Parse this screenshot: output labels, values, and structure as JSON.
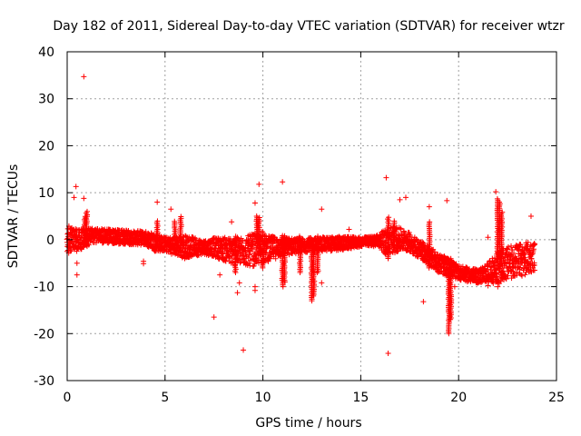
{
  "chart_data": {
    "type": "scatter",
    "title": "Day 182 of 2011, Sidereal Day-to-day VTEC variation (SDTVAR) for receiver wtzr",
    "xlabel": "GPS time / hours",
    "ylabel": "SDTVAR / TECUs",
    "xlim": [
      0,
      25
    ],
    "ylim": [
      -30,
      40
    ],
    "xticks": [
      0,
      5,
      10,
      15,
      20,
      25
    ],
    "yticks": [
      -30,
      -20,
      -10,
      0,
      10,
      20,
      30,
      40
    ],
    "grid": true,
    "marker": "+",
    "marker_color": "#ff0000",
    "series": [
      {
        "name": "SDTVAR",
        "band": {
          "x": [
            0,
            0.5,
            1,
            1.5,
            2,
            3,
            4,
            4.5,
            5,
            5.5,
            6,
            6.5,
            7,
            7.5,
            8,
            8.5,
            9,
            9.5,
            10,
            10.5,
            11,
            12,
            13,
            14,
            15,
            15.5,
            16,
            16.3,
            16.6,
            17,
            17.5,
            18,
            18.5,
            19,
            19.5,
            20,
            20.5,
            21,
            21.5,
            22,
            22.5,
            23,
            23.5,
            23.9
          ],
          "center": [
            0,
            0,
            0.5,
            0.8,
            0.8,
            0.5,
            0.3,
            -0.5,
            -1,
            -1.3,
            -1.5,
            -1.5,
            -1.6,
            -1.6,
            -2,
            -2.5,
            -2.5,
            -2.2,
            -2,
            -1.8,
            -1.5,
            -1.2,
            -1,
            -0.8,
            -0.5,
            -0.3,
            -0.2,
            -0.5,
            0,
            0,
            -0.5,
            -2,
            -3.5,
            -5,
            -6,
            -7,
            -7.5,
            -7.8,
            -7,
            -6,
            -5,
            -4.5,
            -4,
            -3.5
          ],
          "spread": [
            3,
            2.5,
            2,
            1.5,
            1.5,
            1.5,
            1.5,
            2,
            1.5,
            2,
            2.5,
            2,
            1.5,
            2,
            2.5,
            3,
            3,
            3.5,
            3,
            2.5,
            2,
            1.5,
            1.5,
            1.5,
            1,
            1,
            1.5,
            3,
            3,
            2.5,
            2,
            2,
            2,
            2,
            2,
            1.5,
            1.5,
            1.5,
            2,
            3.5,
            3.5,
            3.5,
            3.5,
            3
          ]
        },
        "spikes": [
          {
            "x": 0.9,
            "y1": -1,
            "y2": 5
          },
          {
            "x": 1.0,
            "y1": -1,
            "y2": 6
          },
          {
            "x": 4.6,
            "y1": -2,
            "y2": 4
          },
          {
            "x": 5.5,
            "y1": -1,
            "y2": 4
          },
          {
            "x": 5.8,
            "y1": 0,
            "y2": 5
          },
          {
            "x": 8.6,
            "y1": -7,
            "y2": 1
          },
          {
            "x": 9.7,
            "y1": -2,
            "y2": 5
          },
          {
            "x": 9.8,
            "y1": -3,
            "y2": 5
          },
          {
            "x": 10.0,
            "y1": -6,
            "y2": 2
          },
          {
            "x": 11.0,
            "y1": -10,
            "y2": 1
          },
          {
            "x": 11.1,
            "y1": -9,
            "y2": 1
          },
          {
            "x": 11.9,
            "y1": -7,
            "y2": 1
          },
          {
            "x": 12.5,
            "y1": -13,
            "y2": 0
          },
          {
            "x": 12.6,
            "y1": -12,
            "y2": 0
          },
          {
            "x": 12.8,
            "y1": -7,
            "y2": 1
          },
          {
            "x": 16.4,
            "y1": -4,
            "y2": 5
          },
          {
            "x": 16.7,
            "y1": -2,
            "y2": 4
          },
          {
            "x": 18.5,
            "y1": -6,
            "y2": 4
          },
          {
            "x": 19.5,
            "y1": -20,
            "y2": -4
          },
          {
            "x": 19.6,
            "y1": -17,
            "y2": -4
          },
          {
            "x": 22.0,
            "y1": -6,
            "y2": 9
          },
          {
            "x": 22.1,
            "y1": -6,
            "y2": 8
          },
          {
            "x": 22.2,
            "y1": -5,
            "y2": 6
          }
        ],
        "outliers": [
          {
            "x": 0.85,
            "y": 34.7
          },
          {
            "x": 0.45,
            "y": 11.3
          },
          {
            "x": 0.35,
            "y": 9.0
          },
          {
            "x": 0.85,
            "y": 8.8
          },
          {
            "x": 0.5,
            "y": -5.0
          },
          {
            "x": 0.5,
            "y": -7.5
          },
          {
            "x": 3.9,
            "y": -4.6
          },
          {
            "x": 3.9,
            "y": -5.1
          },
          {
            "x": 4.6,
            "y": 8.0
          },
          {
            "x": 5.3,
            "y": 6.5
          },
          {
            "x": 7.5,
            "y": -16.5
          },
          {
            "x": 7.8,
            "y": -7.5
          },
          {
            "x": 8.4,
            "y": 3.8
          },
          {
            "x": 8.7,
            "y": -11.3
          },
          {
            "x": 8.8,
            "y": -9.2
          },
          {
            "x": 9.0,
            "y": -23.5
          },
          {
            "x": 9.6,
            "y": -10.0
          },
          {
            "x": 9.6,
            "y": -10.8
          },
          {
            "x": 9.6,
            "y": 7.8
          },
          {
            "x": 9.8,
            "y": 11.8
          },
          {
            "x": 11.0,
            "y": 12.3
          },
          {
            "x": 13.0,
            "y": -9.2
          },
          {
            "x": 13.0,
            "y": 6.5
          },
          {
            "x": 14.4,
            "y": 2.2
          },
          {
            "x": 16.3,
            "y": 13.2
          },
          {
            "x": 16.4,
            "y": -24.2
          },
          {
            "x": 16.4,
            "y": -4.0
          },
          {
            "x": 16.5,
            "y": -2.5
          },
          {
            "x": 17.0,
            "y": 8.5
          },
          {
            "x": 17.3,
            "y": 9.0
          },
          {
            "x": 18.2,
            "y": -13.2
          },
          {
            "x": 18.5,
            "y": 7.0
          },
          {
            "x": 18.5,
            "y": -5.5
          },
          {
            "x": 19.3,
            "y": -7.5
          },
          {
            "x": 19.4,
            "y": 8.3
          },
          {
            "x": 19.8,
            "y": -10.0
          },
          {
            "x": 21.5,
            "y": -9.8
          },
          {
            "x": 21.5,
            "y": 0.5
          },
          {
            "x": 21.9,
            "y": 10.2
          },
          {
            "x": 21.9,
            "y": -9.0
          },
          {
            "x": 22.0,
            "y": -10.0
          },
          {
            "x": 23.7,
            "y": 5.0
          }
        ]
      }
    ]
  }
}
